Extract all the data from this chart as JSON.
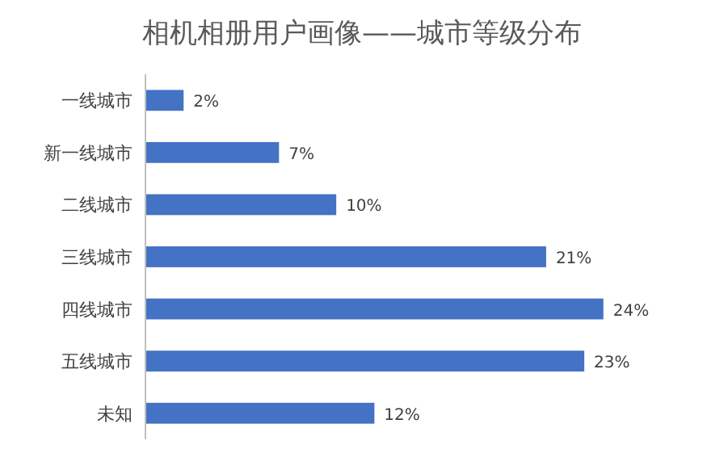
{
  "chart_data": {
    "type": "bar",
    "orientation": "horizontal",
    "title": "相机相册用户画像——城市等级分布",
    "categories": [
      "一线城市",
      "新一线城市",
      "二线城市",
      "三线城市",
      "四线城市",
      "五线城市",
      "未知"
    ],
    "values": [
      2,
      7,
      10,
      21,
      24,
      23,
      12
    ],
    "value_labels": [
      "2%",
      "7%",
      "10%",
      "21%",
      "24%",
      "23%",
      "12%"
    ],
    "color": "#4472c4"
  }
}
